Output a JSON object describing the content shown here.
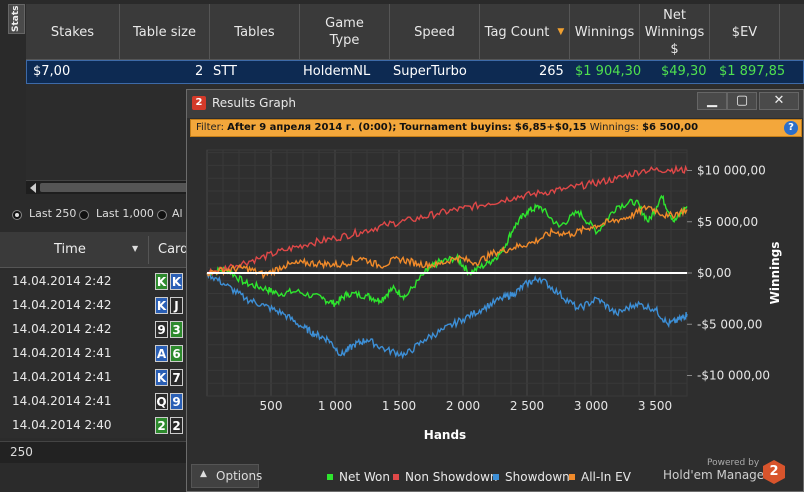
{
  "stats_tab": {
    "label": "Stats"
  },
  "columns": [
    {
      "label": "Stakes"
    },
    {
      "label": "Table size"
    },
    {
      "label": "Tables"
    },
    {
      "label": "Game Type"
    },
    {
      "label": "Speed"
    },
    {
      "label": "Tag Count"
    },
    {
      "label": "Winnings"
    },
    {
      "label": "Net Winnings $"
    },
    {
      "label": "$EV"
    }
  ],
  "stats_row": {
    "stakes": "$7,00",
    "table_size": "2",
    "tables": "STT",
    "game_type": "HoldemNL",
    "speed": "SuperTurbo",
    "tag_count": "265",
    "winnings": "$1 904,30",
    "net_winnings": "$49,30",
    "ev": "$1 897,85"
  },
  "hand_filter": {
    "options": [
      {
        "label": "Last 250",
        "selected": true
      },
      {
        "label": "Last 1,000",
        "selected": false
      },
      {
        "label": "Al",
        "selected": false
      }
    ]
  },
  "hands_table": {
    "col_time": "Time",
    "col_cards": "Card",
    "rows": [
      {
        "time": "14.04.2014 2:42",
        "cards": [
          {
            "r": "K",
            "c": "#2d8a2d"
          },
          {
            "r": "K",
            "c": "#2a5fb5"
          }
        ]
      },
      {
        "time": "14.04.2014 2:42",
        "cards": [
          {
            "r": "K",
            "c": "#2a5fb5"
          },
          {
            "r": "J",
            "c": "#2a2a2a"
          }
        ]
      },
      {
        "time": "14.04.2014 2:42",
        "cards": [
          {
            "r": "9",
            "c": "#2a2a2a"
          },
          {
            "r": "3",
            "c": "#2d8a2d"
          }
        ]
      },
      {
        "time": "14.04.2014 2:41",
        "cards": [
          {
            "r": "A",
            "c": "#2a5fb5"
          },
          {
            "r": "6",
            "c": "#2d8a2d"
          }
        ]
      },
      {
        "time": "14.04.2014 2:41",
        "cards": [
          {
            "r": "K",
            "c": "#2a5fb5"
          },
          {
            "r": "7",
            "c": "#2a2a2a"
          }
        ]
      },
      {
        "time": "14.04.2014 2:41",
        "cards": [
          {
            "r": "Q",
            "c": "#2a2a2a"
          },
          {
            "r": "9",
            "c": "#2a5fb5"
          }
        ]
      },
      {
        "time": "14.04.2014 2:40",
        "cards": [
          {
            "r": "2",
            "c": "#2d8a2d"
          },
          {
            "r": "2",
            "c": "#2a2a2a"
          }
        ]
      }
    ],
    "count": "250"
  },
  "graph_window": {
    "title": "Results Graph",
    "icon_label": "2",
    "filter_prefix": "Filter:",
    "filter_date": "After 9 апреля 2014 г. (0:00);",
    "filter_buyins_label": "Tournament buyins:",
    "filter_buyins": "$6,85+$0,15",
    "filter_winnings_label": "Winnings:",
    "filter_winnings": "$6 500,00",
    "options_label": "Options",
    "powered_by": "Powered by",
    "brand": "Hold'em Manager",
    "brand_logo": "2"
  },
  "chart_data": {
    "type": "line",
    "xlabel": "Hands",
    "ylabel": "Winnings",
    "xlim": [
      0,
      3750
    ],
    "ylim": [
      -12000,
      12000
    ],
    "x_ticks": [
      {
        "v": 500,
        "label": "500"
      },
      {
        "v": 1000,
        "label": "1 000"
      },
      {
        "v": 1500,
        "label": "1 500"
      },
      {
        "v": 2000,
        "label": "2 000"
      },
      {
        "v": 2500,
        "label": "2 500"
      },
      {
        "v": 3000,
        "label": "3 000"
      },
      {
        "v": 3500,
        "label": "3 500"
      }
    ],
    "y_ticks": [
      {
        "v": 10000,
        "label": "$10 000,00"
      },
      {
        "v": 5000,
        "label": "$5 000,00"
      },
      {
        "v": 0,
        "label": "$0,00"
      },
      {
        "v": -5000,
        "label": "-$5 000,00"
      },
      {
        "v": -10000,
        "label": "-$10 000,00"
      }
    ],
    "grid": true,
    "legend_position": "bottom",
    "series": [
      {
        "name": "Net Won",
        "color": "#2ee52e",
        "x": [
          0,
          150,
          300,
          450,
          550,
          700,
          900,
          1000,
          1100,
          1250,
          1350,
          1450,
          1550,
          1700,
          1800,
          1950,
          2050,
          2200,
          2300,
          2400,
          2500,
          2600,
          2750,
          2900,
          3050,
          3200,
          3350,
          3450,
          3550,
          3650,
          3750
        ],
        "y": [
          0,
          400,
          -1000,
          -1500,
          -2000,
          -1800,
          -2500,
          -3000,
          -2000,
          -2200,
          -2700,
          -1500,
          -2300,
          0,
          1000,
          1500,
          0,
          1000,
          2000,
          4500,
          6000,
          6500,
          4500,
          6000,
          4000,
          6500,
          7000,
          5000,
          7500,
          5000,
          6500
        ]
      },
      {
        "name": "Non Showdown",
        "color": "#e04848",
        "x": [
          0,
          200,
          400,
          600,
          800,
          1000,
          1200,
          1400,
          1600,
          1800,
          2000,
          2200,
          2400,
          2600,
          2800,
          3000,
          3200,
          3400,
          3600,
          3750
        ],
        "y": [
          0,
          700,
          1400,
          2200,
          2900,
          3400,
          4000,
          4700,
          5200,
          5800,
          6300,
          6800,
          7400,
          7800,
          8200,
          8700,
          9200,
          10000,
          10100,
          10000
        ]
      },
      {
        "name": "Showdown",
        "color": "#3d8fd6",
        "x": [
          0,
          150,
          300,
          450,
          600,
          750,
          850,
          950,
          1050,
          1150,
          1250,
          1400,
          1550,
          1700,
          1850,
          2000,
          2150,
          2300,
          2400,
          2500,
          2600,
          2750,
          2900,
          3050,
          3200,
          3350,
          3500,
          3600,
          3700,
          3750
        ],
        "y": [
          0,
          -1200,
          -2500,
          -3200,
          -4000,
          -5300,
          -6000,
          -6500,
          -8000,
          -7000,
          -6500,
          -7500,
          -8000,
          -6500,
          -5500,
          -4500,
          -3500,
          -2500,
          -2000,
          -1000,
          -500,
          -2000,
          -3500,
          -2500,
          -4000,
          -3000,
          -3500,
          -5000,
          -4500,
          -4000
        ]
      },
      {
        "name": "All-In EV",
        "color": "#f08a2a",
        "x": [
          0,
          150,
          300,
          450,
          600,
          750,
          900,
          1050,
          1200,
          1350,
          1500,
          1650,
          1800,
          1950,
          2100,
          2250,
          2400,
          2550,
          2700,
          2850,
          3000,
          3150,
          3300,
          3450,
          3600,
          3750
        ],
        "y": [
          0,
          300,
          500,
          -200,
          700,
          1000,
          900,
          800,
          1500,
          700,
          1400,
          900,
          800,
          1500,
          1000,
          2000,
          2500,
          3000,
          4000,
          3800,
          4500,
          5000,
          5500,
          6500,
          5500,
          6200
        ]
      }
    ]
  }
}
